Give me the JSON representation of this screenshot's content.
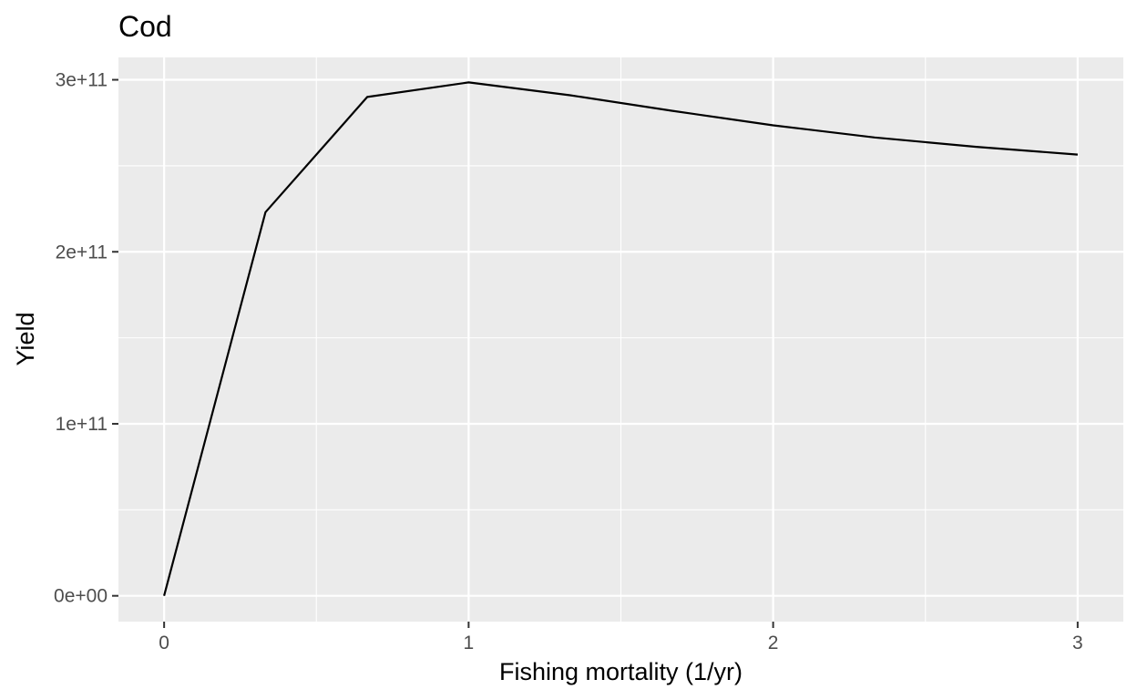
{
  "chart_data": {
    "type": "line",
    "title": "Cod",
    "xlabel": "Fishing mortality (1/yr)",
    "ylabel": "Yield",
    "xlim": [
      -0.15,
      3.15
    ],
    "ylim": [
      -15000000000.0,
      313000000000.0
    ],
    "x_ticks": [
      0,
      1,
      2,
      3
    ],
    "x_tick_labels": [
      "0",
      "1",
      "2",
      "3"
    ],
    "x_minor": [
      0.5,
      1.5,
      2.5
    ],
    "y_ticks": [
      0,
      100000000000.0,
      200000000000.0,
      300000000000.0
    ],
    "y_tick_labels": [
      "0e+00",
      "1e+11",
      "2e+11",
      "3e+11"
    ],
    "y_minor": [
      50000000000.0,
      150000000000.0,
      250000000000.0
    ],
    "grid": true,
    "series": [
      {
        "x": [
          0,
          0.333,
          0.667,
          1.0,
          1.333,
          1.667,
          2.0,
          2.333,
          2.667,
          3.0
        ],
        "values": [
          0,
          223000000000.0,
          290000000000.0,
          298500000000.0,
          291000000000.0,
          282000000000.0,
          273500000000.0,
          266500000000.0,
          261000000000.0,
          256500000000.0
        ]
      }
    ]
  }
}
